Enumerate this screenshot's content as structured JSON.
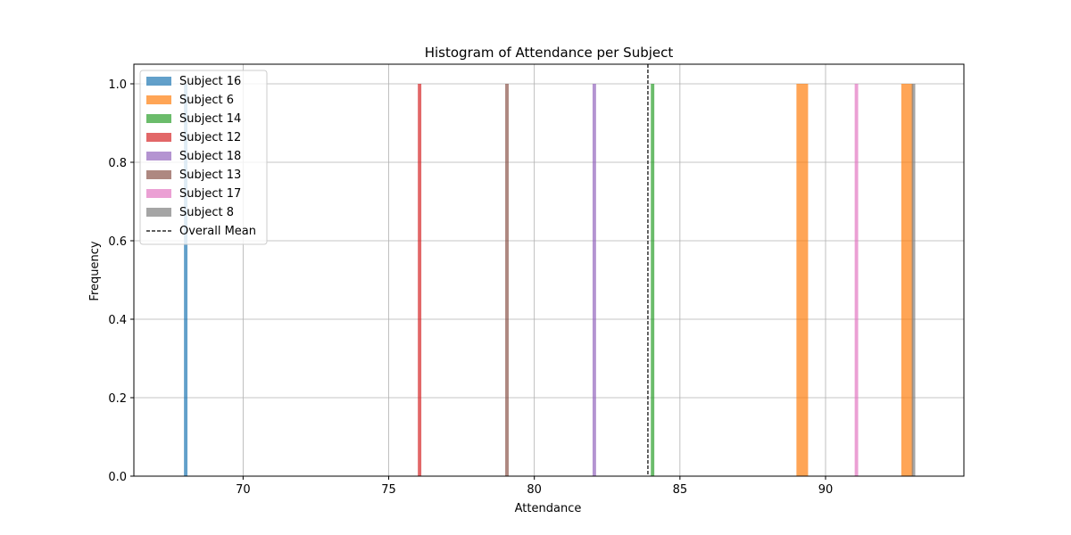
{
  "chart_data": {
    "type": "bar",
    "title": "Histogram of Attendance per Subject",
    "xlabel": "Attendance",
    "ylabel": "Frequency",
    "xlim": [
      66.25,
      94.75
    ],
    "ylim": [
      0,
      1.05
    ],
    "xticks": [
      70,
      75,
      80,
      85,
      90
    ],
    "xtick_labels": [
      "70",
      "75",
      "80",
      "85",
      "90"
    ],
    "yticks": [
      0.0,
      0.2,
      0.4,
      0.6,
      0.8,
      1.0
    ],
    "ytick_labels": [
      "0.0",
      "0.2",
      "0.4",
      "0.6",
      "0.8",
      "1.0"
    ],
    "grid": true,
    "legend_position": "top-left",
    "series": [
      {
        "name": "Subject 16",
        "color": "#1f77b4",
        "bars": [
          {
            "x0": 67.97,
            "x1": 68.09,
            "value": 1
          }
        ]
      },
      {
        "name": "Subject 6",
        "color": "#ff7f0e",
        "bars": [
          {
            "x0": 89.0,
            "x1": 89.4,
            "value": 1
          },
          {
            "x0": 92.6,
            "x1": 93.0,
            "value": 1
          }
        ]
      },
      {
        "name": "Subject 14",
        "color": "#2ca02c",
        "bars": [
          {
            "x0": 84.0,
            "x1": 84.12,
            "value": 1
          }
        ]
      },
      {
        "name": "Subject 12",
        "color": "#d62728",
        "bars": [
          {
            "x0": 76.0,
            "x1": 76.12,
            "value": 1
          }
        ]
      },
      {
        "name": "Subject 18",
        "color": "#9467bd",
        "bars": [
          {
            "x0": 82.0,
            "x1": 82.12,
            "value": 1
          }
        ]
      },
      {
        "name": "Subject 13",
        "color": "#8c564b",
        "bars": [
          {
            "x0": 79.0,
            "x1": 79.12,
            "value": 1
          }
        ]
      },
      {
        "name": "Subject 17",
        "color": "#e377c2",
        "bars": [
          {
            "x0": 91.0,
            "x1": 91.12,
            "value": 1
          }
        ]
      },
      {
        "name": "Subject 8",
        "color": "#7f7f7f",
        "bars": [
          {
            "x0": 92.96,
            "x1": 93.08,
            "value": 1
          }
        ]
      }
    ],
    "bar_alpha": 0.7,
    "mean_line": {
      "name": "Overall Mean",
      "value": 83.9,
      "color": "#000000",
      "style": "dashed"
    }
  }
}
